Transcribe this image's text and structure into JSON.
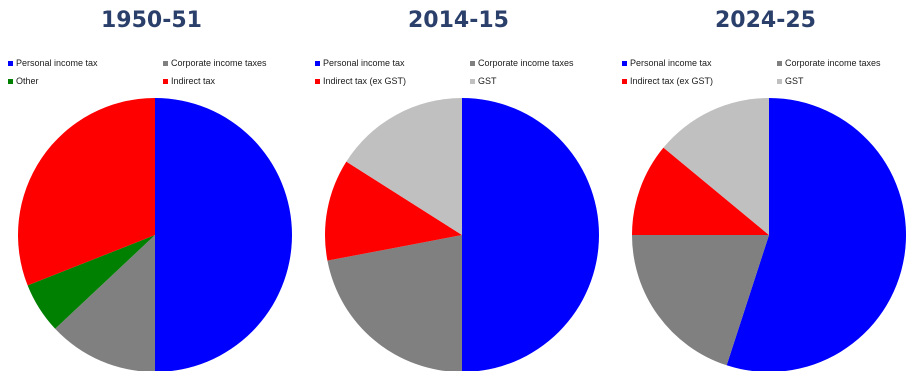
{
  "chart_data": [
    {
      "type": "pie",
      "title": "1950-51",
      "slices": [
        {
          "label": "Personal income tax",
          "value": 50,
          "color": "#0000ff"
        },
        {
          "label": "Corporate income taxes",
          "value": 13,
          "color": "#808080"
        },
        {
          "label": "Other",
          "value": 6,
          "color": "#008000"
        },
        {
          "label": "Indirect tax",
          "value": 31,
          "color": "#ff0000"
        }
      ],
      "legend": [
        "Personal income tax",
        "Corporate income taxes",
        "Other",
        "Indirect tax"
      ],
      "legend_colors": [
        "#0000ff",
        "#808080",
        "#008000",
        "#ff0000"
      ]
    },
    {
      "type": "pie",
      "title": "2014-15",
      "slices": [
        {
          "label": "Personal income tax",
          "value": 50,
          "color": "#0000ff"
        },
        {
          "label": "Corporate income taxes",
          "value": 22,
          "color": "#808080"
        },
        {
          "label": "Indirect tax (ex GST)",
          "value": 12,
          "color": "#ff0000"
        },
        {
          "label": "GST",
          "value": 16,
          "color": "#c0c0c0"
        }
      ],
      "legend": [
        "Personal income tax",
        "Corporate income taxes",
        "Indirect tax (ex GST)",
        "GST"
      ],
      "legend_colors": [
        "#0000ff",
        "#808080",
        "#ff0000",
        "#c0c0c0"
      ]
    },
    {
      "type": "pie",
      "title": "2024-25",
      "slices": [
        {
          "label": "Personal income tax",
          "value": 55,
          "color": "#0000ff"
        },
        {
          "label": "Corporate income taxes",
          "value": 20,
          "color": "#808080"
        },
        {
          "label": "Indirect tax (ex GST)",
          "value": 11,
          "color": "#ff0000"
        },
        {
          "label": "GST",
          "value": 14,
          "color": "#c0c0c0"
        }
      ],
      "legend": [
        "Personal income tax",
        "Corporate income taxes",
        "Indirect tax (ex GST)",
        "GST"
      ],
      "legend_colors": [
        "#0000ff",
        "#808080",
        "#ff0000",
        "#c0c0c0"
      ]
    }
  ]
}
